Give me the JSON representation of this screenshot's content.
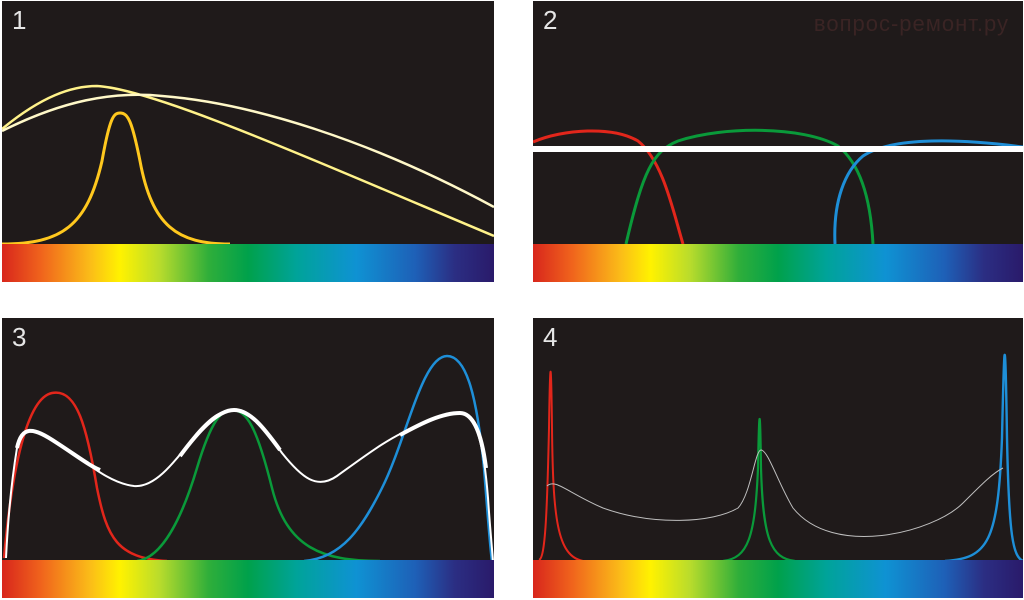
{
  "panels": [
    {
      "number": "1"
    },
    {
      "number": "2"
    },
    {
      "number": "3"
    },
    {
      "number": "4"
    }
  ],
  "watermark": "вопрос-ремонт.ру",
  "colors": {
    "background": "#1f1a1a",
    "yellow": "#ffd21e",
    "pale_yellow": "#fff6a8",
    "red": "#e2261b",
    "green": "#0a9a3a",
    "blue": "#1e8fd8",
    "white": "#ffffff"
  }
}
